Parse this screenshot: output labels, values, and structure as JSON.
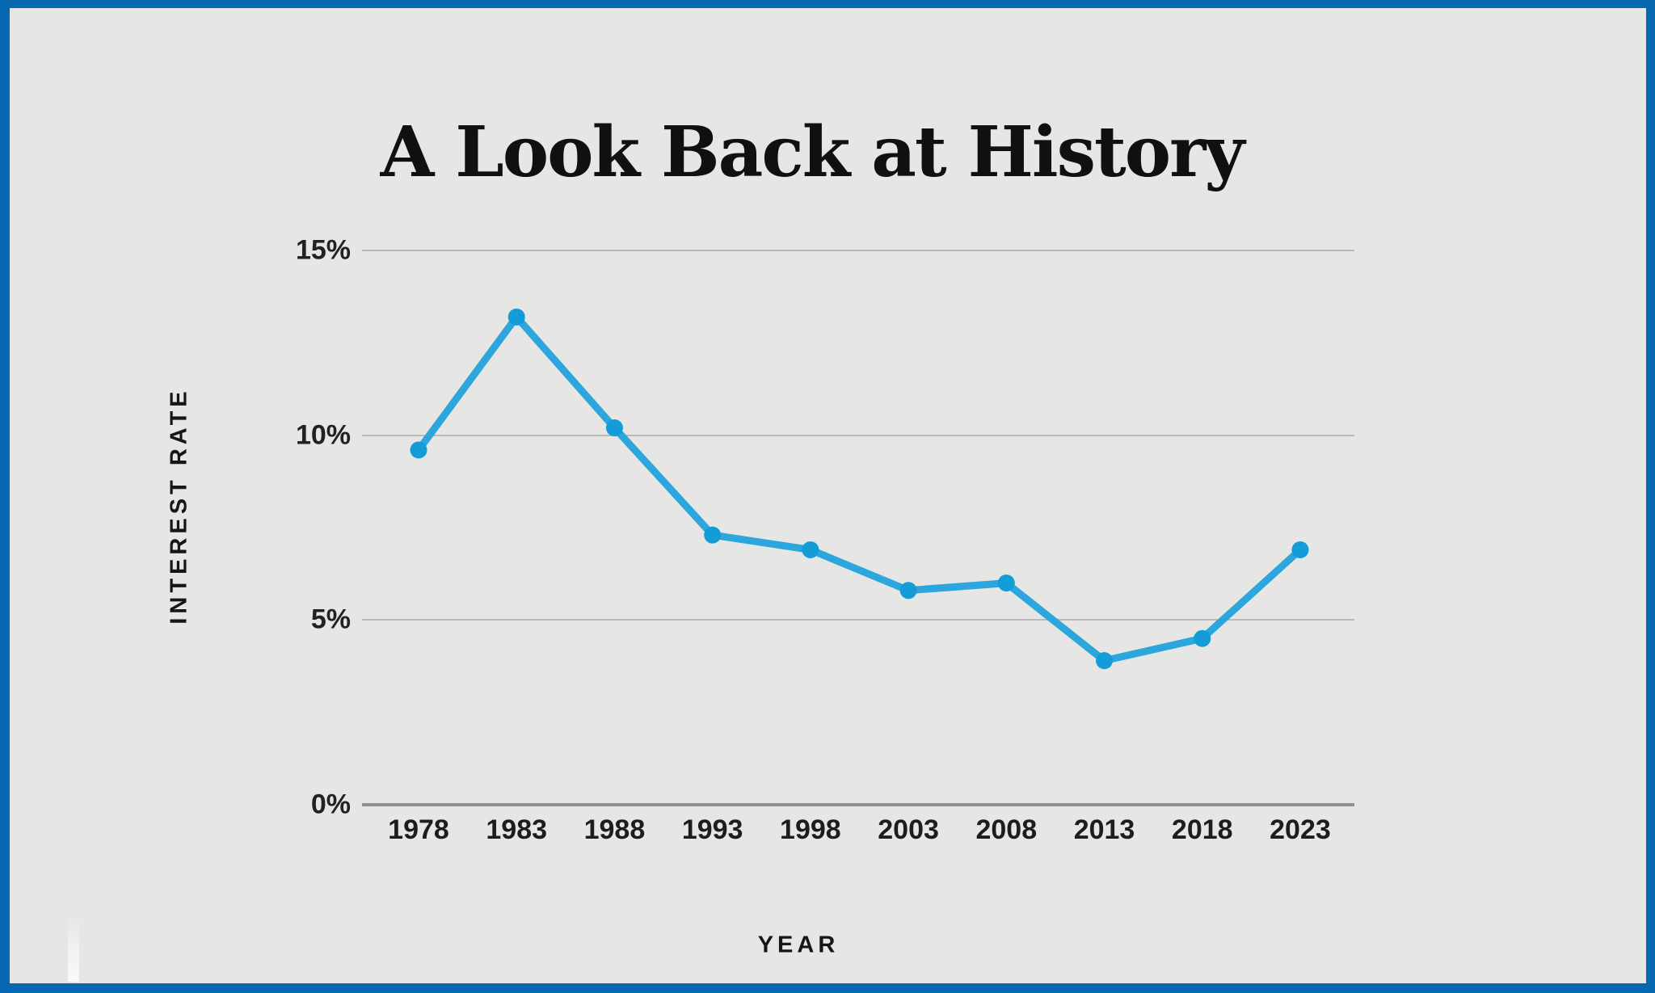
{
  "page": {
    "title": "A Look Back at History"
  },
  "colors": {
    "frame_border": "#0768B2",
    "background": "#E6E7E5",
    "gridline": "#B9B9B7",
    "axis_line": "#91918F",
    "text": "#1d1d1d",
    "line": "#2CA6DC",
    "point": "#149CD9"
  },
  "chart_data": {
    "type": "line",
    "title": "A Look Back at History",
    "xlabel": "YEAR",
    "ylabel": "INTEREST RATE",
    "categories": [
      "1978",
      "1983",
      "1988",
      "1993",
      "1998",
      "2003",
      "2008",
      "2013",
      "2018",
      "2023"
    ],
    "series": [
      {
        "name": "Interest Rate",
        "values": [
          9.6,
          13.2,
          10.2,
          7.3,
          6.9,
          5.8,
          6.0,
          3.9,
          4.5,
          6.9
        ]
      }
    ],
    "ylim": [
      0,
      15
    ],
    "ytick_values": [
      0,
      5,
      10,
      15
    ],
    "ytick_labels": [
      "0%",
      "5%",
      "10%",
      "15%"
    ],
    "grid": "horizontal-only",
    "legend": "none",
    "marker": "dot"
  }
}
